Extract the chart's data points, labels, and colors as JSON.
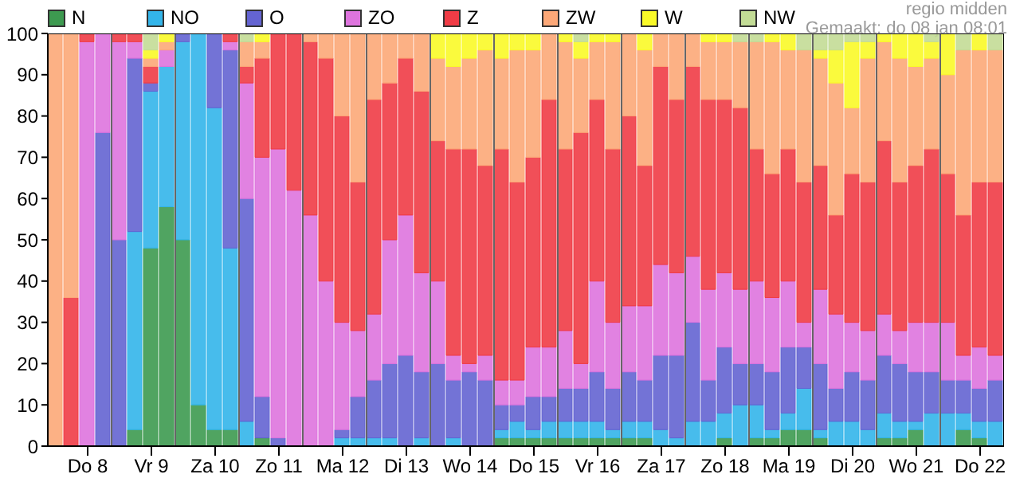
{
  "chart_data": {
    "type": "bar",
    "stacked": true,
    "categories": [
      null,
      null,
      "Do 8",
      null,
      null,
      null,
      "Vr 9",
      null,
      null,
      null,
      "Za 10",
      null,
      null,
      null,
      "Zo 11",
      null,
      null,
      null,
      "Ma 12",
      null,
      null,
      null,
      "Di 13",
      null,
      null,
      null,
      "Wo 14",
      null,
      null,
      null,
      "Do 15",
      null,
      null,
      null,
      "Vr 16",
      null,
      null,
      null,
      "Za 17",
      null,
      null,
      null,
      "Zo 18",
      null,
      null,
      null,
      "Ma 19",
      null,
      null,
      null,
      "Di 20",
      null,
      null,
      null,
      "Wo 21",
      null,
      null,
      null,
      "Do 22",
      null
    ],
    "ylim": [
      0,
      100
    ],
    "yticks": [
      0,
      10,
      20,
      30,
      40,
      50,
      60,
      70,
      80,
      90,
      100
    ],
    "grid": true,
    "legend": "top",
    "annotations": [
      "regio midden",
      "Gemaakt: do 08 jan 08:01"
    ],
    "series": [
      {
        "name": "N",
        "color": "#3d9a50",
        "values": [
          0,
          0,
          0,
          0,
          0,
          4,
          48,
          58,
          50,
          10,
          4,
          4,
          0,
          2,
          0,
          0,
          0,
          0,
          0,
          0,
          0,
          0,
          0,
          0,
          0,
          0,
          0,
          0,
          2,
          2,
          2,
          2,
          2,
          2,
          2,
          2,
          2,
          2,
          0,
          0,
          0,
          0,
          2,
          0,
          2,
          2,
          4,
          4,
          2,
          0,
          0,
          0,
          2,
          2,
          4,
          0,
          0,
          4,
          2,
          0
        ]
      },
      {
        "name": "NO",
        "color": "#33b5ea",
        "values": [
          0,
          0,
          0,
          0,
          0,
          48,
          38,
          34,
          48,
          90,
          78,
          44,
          6,
          0,
          0,
          0,
          0,
          0,
          2,
          2,
          2,
          2,
          0,
          2,
          0,
          2,
          0,
          0,
          2,
          4,
          2,
          4,
          4,
          4,
          4,
          2,
          4,
          4,
          4,
          2,
          6,
          6,
          6,
          10,
          8,
          2,
          4,
          10,
          2,
          6,
          6,
          4,
          6,
          4,
          2,
          8,
          8,
          4,
          4,
          6
        ]
      },
      {
        "name": "O",
        "color": "#6464d2",
        "values": [
          0,
          0,
          0,
          76,
          50,
          42,
          2,
          0,
          2,
          0,
          18,
          48,
          54,
          10,
          2,
          0,
          0,
          0,
          2,
          10,
          14,
          18,
          22,
          16,
          20,
          14,
          18,
          16,
          6,
          4,
          8,
          6,
          8,
          8,
          12,
          10,
          12,
          10,
          18,
          20,
          24,
          10,
          16,
          10,
          10,
          14,
          16,
          10,
          16,
          8,
          12,
          12,
          14,
          14,
          12,
          10,
          8,
          8,
          8,
          10
        ]
      },
      {
        "name": "ZO",
        "color": "#de74de",
        "values": [
          0,
          0,
          98,
          24,
          48,
          4,
          0,
          4,
          0,
          0,
          0,
          2,
          28,
          58,
          70,
          62,
          56,
          40,
          26,
          16,
          16,
          30,
          34,
          24,
          20,
          6,
          2,
          6,
          6,
          6,
          12,
          12,
          14,
          6,
          22,
          16,
          16,
          18,
          22,
          20,
          16,
          22,
          18,
          18,
          20,
          18,
          16,
          6,
          18,
          18,
          12,
          12,
          10,
          8,
          12,
          12,
          14,
          6,
          10,
          6
        ]
      },
      {
        "name": "Z",
        "color": "#f03c46",
        "values": [
          0,
          36,
          2,
          0,
          2,
          2,
          4,
          0,
          0,
          0,
          0,
          2,
          4,
          24,
          28,
          38,
          42,
          54,
          50,
          36,
          52,
          38,
          38,
          44,
          34,
          50,
          52,
          46,
          56,
          48,
          46,
          60,
          44,
          56,
          44,
          42,
          46,
          34,
          48,
          42,
          46,
          46,
          42,
          44,
          32,
          30,
          32,
          34,
          30,
          24,
          36,
          36,
          42,
          36,
          38,
          42,
          36,
          34,
          40,
          42
        ]
      },
      {
        "name": "ZW",
        "color": "#fca878",
        "values": [
          100,
          64,
          0,
          0,
          0,
          0,
          2,
          2,
          0,
          0,
          0,
          0,
          6,
          4,
          0,
          0,
          2,
          6,
          20,
          36,
          16,
          12,
          6,
          14,
          20,
          20,
          22,
          28,
          22,
          32,
          26,
          16,
          26,
          18,
          14,
          26,
          20,
          28,
          8,
          16,
          8,
          14,
          14,
          16,
          26,
          32,
          24,
          32,
          26,
          32,
          16,
          30,
          24,
          30,
          24,
          22,
          24,
          40,
          32,
          32
        ]
      },
      {
        "name": "W",
        "color": "#fafa28",
        "values": [
          0,
          0,
          0,
          0,
          0,
          0,
          2,
          2,
          0,
          0,
          0,
          0,
          0,
          2,
          0,
          0,
          0,
          0,
          0,
          0,
          0,
          0,
          0,
          0,
          6,
          8,
          6,
          4,
          6,
          4,
          4,
          0,
          2,
          4,
          2,
          2,
          0,
          4,
          0,
          0,
          0,
          2,
          2,
          0,
          0,
          2,
          4,
          0,
          2,
          8,
          16,
          4,
          2,
          6,
          8,
          4,
          10,
          0,
          4,
          0
        ]
      },
      {
        "name": "NW",
        "color": "#c3dc96",
        "values": [
          0,
          0,
          0,
          0,
          0,
          0,
          4,
          0,
          0,
          0,
          0,
          0,
          2,
          0,
          0,
          0,
          0,
          0,
          0,
          0,
          0,
          0,
          0,
          0,
          0,
          0,
          0,
          0,
          0,
          0,
          0,
          0,
          0,
          2,
          0,
          0,
          0,
          0,
          0,
          0,
          0,
          0,
          0,
          2,
          2,
          0,
          0,
          4,
          4,
          4,
          2,
          2,
          0,
          0,
          0,
          2,
          0,
          4,
          0,
          4
        ]
      }
    ]
  }
}
